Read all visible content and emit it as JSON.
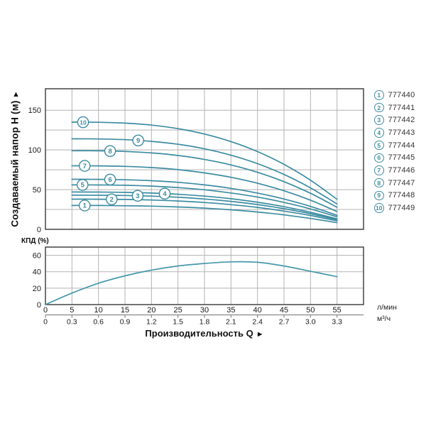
{
  "colors": {
    "curve": "#3c8ca2",
    "efficiency_curve": "#4598ab",
    "grid": "#b3b3b3",
    "border": "#444444",
    "scale_bar": "#888888",
    "text": "#1a1a1a",
    "legend_text": "#333333"
  },
  "head_chart": {
    "y_axis_title": "Создаваемый напор H (м)",
    "y_axis_arrow_up": "▲"
  },
  "efficiency_chart_label": "КПД (%)",
  "x_axis": {
    "title": "Производительность Q",
    "arrow_right": "►",
    "unit_flow_lmin": "л/мин",
    "unit_flow_m3h": "м³/ч"
  },
  "chart_data": [
    {
      "type": "line",
      "title": "",
      "ylabel": "Создаваемый напор H (м)",
      "xlabel": "Производительность Q",
      "x_units": [
        "л/мин",
        "м³/ч"
      ],
      "grid": true,
      "legend_position": "right",
      "xlim_lmin": [
        0,
        60
      ],
      "ylim": [
        0,
        177
      ],
      "y_ticks": [
        0,
        50,
        100,
        150
      ],
      "x_ticks_lmin": [
        0,
        5,
        10,
        15,
        20,
        25,
        30,
        35,
        40,
        45,
        50,
        55
      ],
      "x_ticks_m3h": [
        "0",
        "0.3",
        "0.6",
        "0.9",
        "1.2",
        "1.5",
        "1.8",
        "2.1",
        "2.4",
        "2.7",
        "3.0",
        "3.3"
      ],
      "x_lmin": [
        5,
        10,
        15,
        20,
        25,
        30,
        35,
        40,
        45,
        50,
        55
      ],
      "series": [
        {
          "name": "1",
          "model": "777440",
          "label_q": 7.4,
          "values": [
            30,
            30,
            29.7,
            29.2,
            28.2,
            26.7,
            24.6,
            21.8,
            18.2,
            13.7,
            8.4
          ]
        },
        {
          "name": "2",
          "model": "777441",
          "label_q": 12.5,
          "values": [
            38,
            37.9,
            37.6,
            36.9,
            35.7,
            33.8,
            31.1,
            27.6,
            23,
            17.4,
            10.6
          ]
        },
        {
          "name": "3",
          "model": "777442",
          "label_q": 17.4,
          "values": [
            43,
            42.9,
            42.6,
            41.8,
            40.4,
            38.2,
            35.2,
            31.2,
            26,
            19.7,
            12
          ]
        },
        {
          "name": "4",
          "model": "777443",
          "label_q": 22.5,
          "values": [
            47,
            46.9,
            46.6,
            45.7,
            44.2,
            41.8,
            38.5,
            34.1,
            28.5,
            21.5,
            13.2
          ]
        },
        {
          "name": "5",
          "model": "777444",
          "label_q": 7.0,
          "values": [
            56,
            55.9,
            55.5,
            54.4,
            52.6,
            49.8,
            45.8,
            40.6,
            33.9,
            25.7,
            15.7
          ]
        },
        {
          "name": "6",
          "model": "777445",
          "label_q": 12.2,
          "values": [
            63,
            62.9,
            62.4,
            61.2,
            59.2,
            56,
            51.6,
            45.7,
            38.2,
            28.9,
            17.6
          ]
        },
        {
          "name": "7",
          "model": "777446",
          "label_q": 7.4,
          "values": [
            80,
            79.9,
            79.3,
            77.8,
            75.2,
            71.1,
            65.5,
            58,
            48.5,
            36.7,
            22.4
          ]
        },
        {
          "name": "8",
          "model": "777447",
          "label_q": 12.2,
          "values": [
            99,
            98.9,
            98.1,
            96.2,
            93,
            88,
            81.1,
            71.8,
            60,
            45.4,
            27.7
          ]
        },
        {
          "name": "9",
          "model": "777448",
          "label_q": 17.5,
          "values": [
            114,
            113.8,
            112.9,
            110.8,
            107.1,
            101.4,
            93.3,
            82.7,
            69.1,
            52.2,
            31.9
          ]
        },
        {
          "name": "10",
          "model": "777449",
          "label_q": 7.1,
          "values": [
            135,
            134.8,
            133.7,
            131.2,
            126.8,
            120,
            110.5,
            97.9,
            81.8,
            61.9,
            37.8
          ]
        }
      ]
    },
    {
      "type": "line",
      "title": "КПД (%)",
      "ylabel": "КПД (%)",
      "xlabel": "Производительность Q",
      "grid": true,
      "xlim_lmin": [
        0,
        60
      ],
      "ylim": [
        0,
        70
      ],
      "y_ticks": [
        0,
        20,
        40,
        60
      ],
      "x": [
        0,
        5,
        10,
        15,
        20,
        25,
        30,
        35,
        40,
        45,
        50,
        55
      ],
      "series": [
        {
          "name": "КПД",
          "values": [
            0,
            14,
            26,
            35,
            42,
            47,
            50,
            52,
            51.5,
            47,
            40.5,
            34
          ]
        }
      ]
    }
  ]
}
